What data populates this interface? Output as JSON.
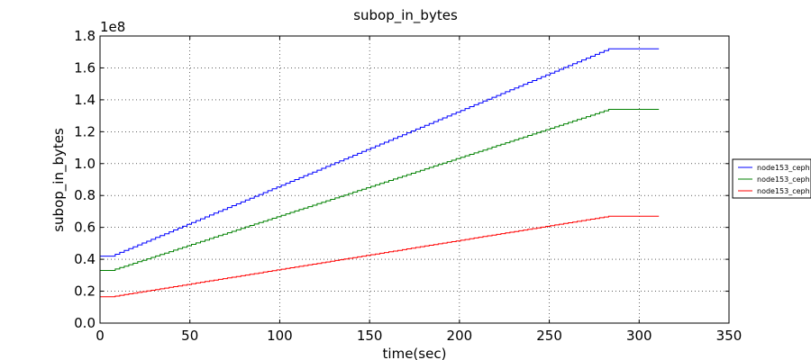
{
  "chart_data": {
    "type": "line",
    "title": "subop_in_bytes",
    "xlabel": "time(sec)",
    "ylabel": "subop_in_bytes",
    "y_offset_label": "1e8",
    "y_scale_factor": 100000000,
    "xlim": [
      0,
      350
    ],
    "ylim": [
      0.0,
      1.8
    ],
    "xticks": [
      "0",
      "50",
      "100",
      "150",
      "200",
      "250",
      "300",
      "350"
    ],
    "yticks": [
      "0.0",
      "0.2",
      "0.4",
      "0.6",
      "0.8",
      "1.0",
      "1.2",
      "1.4",
      "1.6",
      "1.8"
    ],
    "grid": true,
    "legend_position": "right",
    "series": [
      {
        "name": "node153_ceph",
        "color": "#0000ff",
        "points": [
          [
            0,
            0.42
          ],
          [
            6,
            0.42
          ],
          [
            283,
            1.72
          ],
          [
            311,
            1.72
          ]
        ]
      },
      {
        "name": "node153_ceph",
        "color": "#008000",
        "points": [
          [
            0,
            0.33
          ],
          [
            6,
            0.33
          ],
          [
            283,
            1.34
          ],
          [
            311,
            1.34
          ]
        ]
      },
      {
        "name": "node153_ceph",
        "color": "#ff0000",
        "points": [
          [
            0,
            0.165
          ],
          [
            6,
            0.165
          ],
          [
            283,
            0.67
          ],
          [
            311,
            0.67
          ]
        ]
      }
    ]
  }
}
